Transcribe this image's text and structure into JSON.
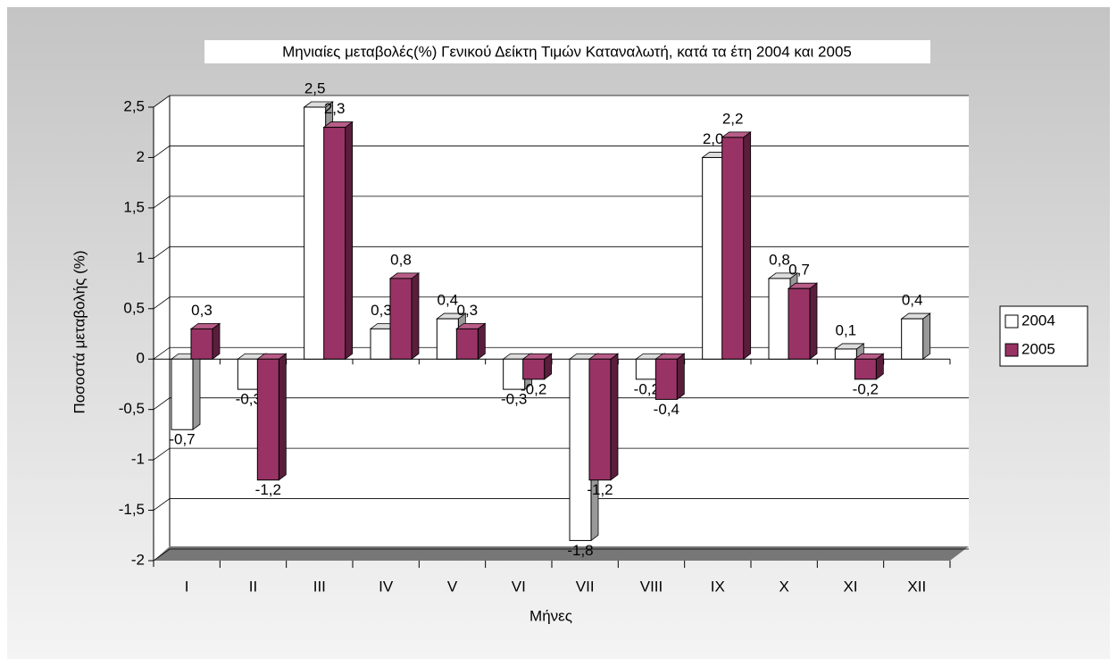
{
  "chart_data": {
    "type": "bar",
    "title": "Μηνιαίες μεταβολές(%) Γενικού Δείκτη Τιμών Καταναλωτή, κατά τα έτη 2004 και 2005",
    "x_label": "Μήνες",
    "y_label": "Ποσοστά μεταβολής (%)",
    "categories": [
      "I",
      "II",
      "III",
      "IV",
      "V",
      "VI",
      "VII",
      "VIII",
      "IX",
      "X",
      "XI",
      "XII"
    ],
    "series": [
      {
        "name": "2004",
        "color": "#ffffff",
        "values": [
          -0.7,
          -0.3,
          2.5,
          0.3,
          0.4,
          -0.3,
          -1.8,
          -0.2,
          2.0,
          0.8,
          0.1,
          0.4
        ],
        "value_labels": [
          "-0,7",
          "-0,3",
          "2,5",
          "0,3",
          "0,4",
          "-0,3",
          "-1,8",
          "-0,2",
          "2,0",
          "0,8",
          "0,1",
          "0,4"
        ]
      },
      {
        "name": "2005",
        "color": "#993366",
        "values": [
          0.3,
          -1.2,
          2.3,
          0.8,
          0.3,
          -0.2,
          -1.2,
          -0.4,
          2.2,
          0.7,
          -0.2,
          null
        ],
        "value_labels": [
          "0,3",
          "-1,2",
          "2,3",
          "0,8",
          "0,3",
          "-0,2",
          "-1,2",
          "-0,4",
          "2,2",
          "0,7",
          "-0,2",
          null
        ]
      }
    ],
    "ylim": [
      -2,
      2.5
    ],
    "yticks": [
      -2,
      {
        "value": -1.5,
        "label": "-1,5"
      },
      -1,
      {
        "value": -0.5,
        "label": "-0,5"
      },
      0,
      {
        "value": 0.5,
        "label": "0,5"
      },
      1,
      {
        "value": 1.5,
        "label": "1,5"
      },
      2,
      {
        "value": 2.5,
        "label": "2,5"
      }
    ],
    "grid": true,
    "legend": "right"
  }
}
